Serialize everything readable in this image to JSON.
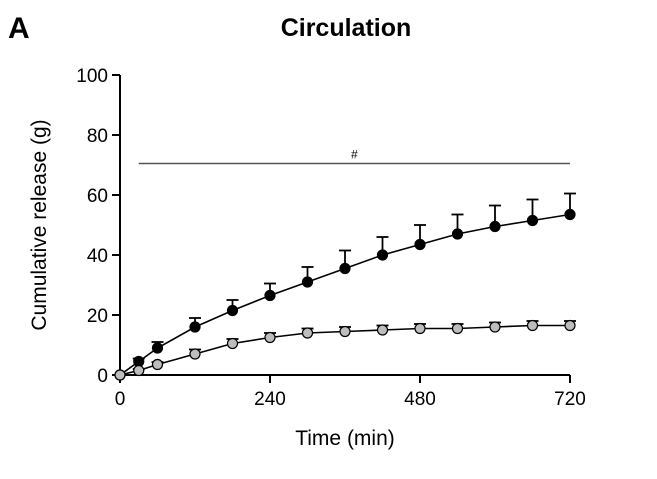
{
  "panel_letter": "A",
  "chart_data": {
    "type": "line",
    "title": "Circulation",
    "xlabel": "Time (min)",
    "ylabel": "Cumulative release (g)",
    "xlim": [
      0,
      720
    ],
    "ylim": [
      0,
      100
    ],
    "xticks": [
      0,
      240,
      480,
      720
    ],
    "yticks": [
      0,
      20,
      40,
      60,
      80,
      100
    ],
    "annotation": {
      "text": "#",
      "x_from": 30,
      "x_to": 720,
      "y": 70.5
    },
    "series": [
      {
        "color": "#000000",
        "x": [
          0,
          30,
          60,
          120,
          180,
          240,
          300,
          360,
          420,
          480,
          540,
          600,
          660,
          720
        ],
        "y": [
          0,
          4.5,
          9,
          16,
          21.5,
          26.5,
          31,
          35.5,
          40,
          43.5,
          47,
          49.5,
          51.5,
          53.5
        ],
        "err": [
          0,
          1,
          2,
          3,
          3.5,
          4,
          5,
          6,
          6,
          6.5,
          6.5,
          7,
          7,
          7
        ]
      },
      {
        "color": "#bdbdbd",
        "x": [
          0,
          30,
          60,
          120,
          180,
          240,
          300,
          360,
          420,
          480,
          540,
          600,
          660,
          720
        ],
        "y": [
          0,
          1.5,
          3.5,
          7,
          10.5,
          12.5,
          14,
          14.5,
          15,
          15.5,
          15.5,
          16,
          16.5,
          16.5
        ],
        "err": [
          0,
          0.5,
          0.8,
          1.5,
          1.5,
          1.5,
          1.5,
          1.5,
          1.5,
          1.5,
          1.5,
          1.5,
          1.5,
          1.5
        ]
      }
    ]
  }
}
